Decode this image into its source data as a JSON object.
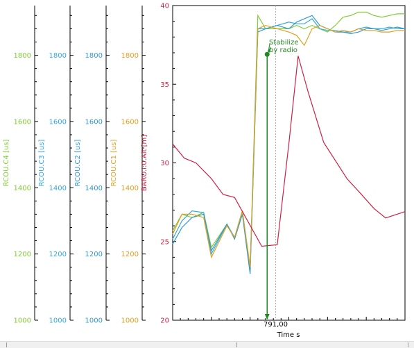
{
  "chart_data": {
    "type": "line",
    "xlabel": "Time s",
    "x_tick_labels": [
      "791,00"
    ],
    "grid": false,
    "legend": "none",
    "left_axes": [
      {
        "label": "RCOU.C4 [us]",
        "color": "#7fcc33",
        "ylim": [
          1000,
          1950
        ],
        "ticks": [
          1000,
          1200,
          1400,
          1600,
          1800
        ]
      },
      {
        "label": "RCOU.C3 [us]",
        "color": "#33aadd",
        "ylim": [
          1000,
          1950
        ],
        "ticks": [
          1000,
          1200,
          1400,
          1600,
          1800
        ]
      },
      {
        "label": "RCOU.C2 [us]",
        "color": "#3399cc",
        "ylim": [
          1000,
          1950
        ],
        "ticks": [
          1000,
          1200,
          1400,
          1600,
          1800
        ]
      },
      {
        "label": "RCOU.C1 [us]",
        "color": "#e0a020",
        "ylim": [
          1000,
          1950
        ],
        "ticks": [
          1000,
          1200,
          1400,
          1600,
          1800
        ]
      },
      {
        "label": "BARO.I:0.Alt [m]",
        "color": "#cc2244",
        "ylim": [
          20,
          40
        ],
        "ticks": [
          20,
          25,
          30,
          35,
          40
        ]
      }
    ],
    "xlim": [
      0,
      30
    ],
    "series": [
      {
        "name": "RCOU.C4",
        "axis": 0,
        "color": "#7fcc33",
        "x": [
          0,
          1.2,
          2.5,
          4,
          5,
          7,
          8,
          9,
          10,
          11,
          12,
          13.5,
          15,
          16,
          17,
          18,
          19,
          20,
          21,
          22,
          23,
          24,
          25,
          26,
          27,
          28,
          29,
          30
        ],
        "y": [
          1270,
          1320,
          1310,
          1325,
          1220,
          1290,
          1250,
          1330,
          1160,
          1920,
          1880,
          1880,
          1880,
          1890,
          1880,
          1890,
          1880,
          1870,
          1890,
          1915,
          1920,
          1930,
          1930,
          1920,
          1915,
          1920,
          1925,
          1925
        ]
      },
      {
        "name": "RCOU.C3",
        "axis": 1,
        "color": "#33aadd",
        "x": [
          0,
          1.2,
          2.5,
          4,
          5,
          7,
          8,
          9,
          10,
          11,
          12,
          13.5,
          15,
          16,
          17,
          18,
          19,
          20,
          21,
          22,
          23,
          24,
          25,
          26,
          27,
          28,
          29,
          30
        ],
        "y": [
          1245,
          1300,
          1330,
          1325,
          1200,
          1290,
          1250,
          1330,
          1150,
          1880,
          1880,
          1890,
          1900,
          1895,
          1895,
          1910,
          1880,
          1875,
          1875,
          1870,
          1870,
          1880,
          1885,
          1880,
          1880,
          1885,
          1880,
          1880
        ]
      },
      {
        "name": "RCOU.C2",
        "axis": 2,
        "color": "#3399cc",
        "x": [
          0,
          1.2,
          2.5,
          4,
          5,
          7,
          8,
          9,
          10,
          11,
          12,
          13.5,
          15,
          16,
          17,
          18,
          19,
          20,
          21,
          22,
          23,
          24,
          25,
          26,
          27,
          28,
          29,
          30
        ],
        "y": [
          1230,
          1280,
          1310,
          1320,
          1210,
          1290,
          1245,
          1320,
          1140,
          1870,
          1880,
          1890,
          1880,
          1900,
          1910,
          1920,
          1890,
          1880,
          1870,
          1870,
          1865,
          1870,
          1880,
          1880,
          1875,
          1880,
          1885,
          1880
        ]
      },
      {
        "name": "RCOU.C1",
        "axis": 3,
        "color": "#e0a020",
        "x": [
          0,
          1.2,
          2.5,
          4,
          5,
          7,
          8,
          9,
          10,
          11,
          12,
          13.5,
          15,
          16,
          17,
          18,
          19,
          20,
          21,
          22,
          23,
          24,
          25,
          26,
          27,
          28,
          29,
          30
        ],
        "y": [
          1260,
          1320,
          1320,
          1310,
          1190,
          1285,
          1250,
          1330,
          1160,
          1880,
          1890,
          1880,
          1870,
          1860,
          1830,
          1880,
          1890,
          1880,
          1870,
          1875,
          1870,
          1880,
          1875,
          1875,
          1870,
          1870,
          1875,
          1875
        ]
      },
      {
        "name": "BARO.I:0.Alt",
        "axis": 4,
        "color": "#cc2244",
        "x": [
          0,
          1.5,
          3,
          5,
          6.5,
          8,
          11.5,
          13.5,
          15,
          16.2,
          17.5,
          19.5,
          22.5,
          24,
          26,
          27.5,
          30
        ],
        "y": [
          31.2,
          30.3,
          30.0,
          29.0,
          28.0,
          27.8,
          24.7,
          24.8,
          31.2,
          36.8,
          34.5,
          31.3,
          29.0,
          28.2,
          27.1,
          26.5,
          26.9
        ]
      }
    ],
    "annotation": {
      "text": [
        "Stabilize",
        "by radio"
      ],
      "color": "#228822",
      "x": 12.2,
      "y_axis": 4,
      "y": 36.9
    },
    "event_marker": {
      "x": 12.2,
      "color": "#228822"
    },
    "cursor_x": 13.3
  }
}
